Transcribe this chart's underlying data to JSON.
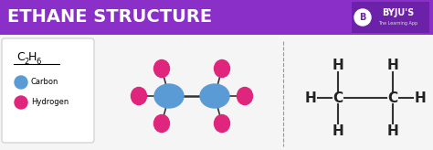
{
  "title": "ETHANE STRUCTURE",
  "title_bg_color": "#8B2FC9",
  "title_text_color": "#FFFFFF",
  "bg_color": "#F5F5F5",
  "carbon_color": "#5B9BD5",
  "hydrogen_color": "#E0257C",
  "legend_carbon": "Carbon",
  "legend_hydrogen": "Hydrogen",
  "byju_bg": "#6B21A8",
  "bond_color": "#333333",
  "dashed_line_color": "#999999",
  "struct_text_color": "#222222"
}
